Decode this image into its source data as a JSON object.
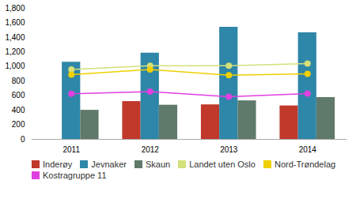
{
  "chart_data": {
    "type": "bar",
    "categories": [
      "2011",
      "2012",
      "2013",
      "2014"
    ],
    "series": [
      {
        "name": "Inderøy",
        "type": "bar",
        "color": "#c0392b",
        "values": [
          0,
          520,
          475,
          460
        ]
      },
      {
        "name": "Jevnaker",
        "type": "bar",
        "color": "#2e86a8",
        "values": [
          1060,
          1185,
          1540,
          1465
        ]
      },
      {
        "name": "Skaun",
        "type": "bar",
        "color": "#5f7a6b",
        "values": [
          400,
          470,
          530,
          575
        ]
      },
      {
        "name": "Landet uten Oslo",
        "type": "line",
        "color": "#d4e07a",
        "marker": "o",
        "values": [
          960,
          1010,
          1010,
          1040
        ]
      },
      {
        "name": "Nord-Trøndelag",
        "type": "line",
        "color": "#f0d000",
        "marker": "o",
        "values": [
          890,
          960,
          880,
          900
        ]
      },
      {
        "name": "Kostragruppe 11",
        "type": "line",
        "color": "#e040e0",
        "marker": "o",
        "values": [
          625,
          655,
          585,
          630
        ]
      }
    ],
    "ylim": [
      0,
      1800
    ],
    "yticks": [
      0,
      200,
      400,
      600,
      800,
      1000,
      1200,
      1400,
      1600,
      1800
    ],
    "grid": false,
    "legend": "bottom"
  }
}
